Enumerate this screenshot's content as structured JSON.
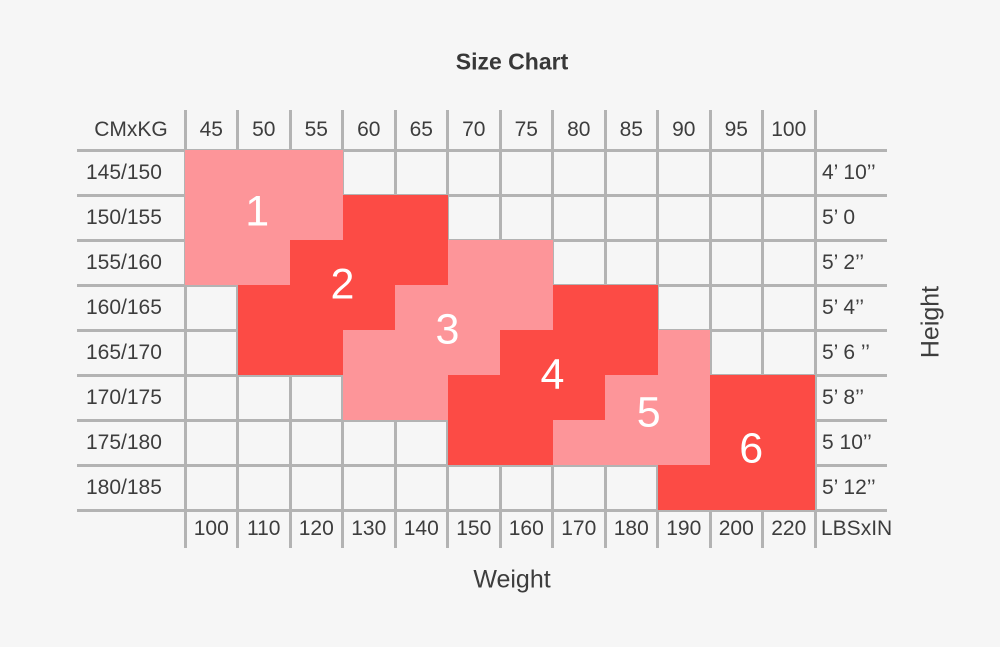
{
  "title": "Size Chart",
  "x_axis_label": "Weight",
  "y_axis_label": "Height",
  "top_left_corner": "CMxKG",
  "bottom_right_corner": "LBSxIN",
  "colors": {
    "pink": "#fd9599",
    "red": "#fc4b45",
    "grid": "#b3b3b3",
    "background": "#f6f6f6",
    "text": "#3d3d3d",
    "zone_label": "#ffffff"
  },
  "chart_data": {
    "type": "heatmap",
    "title": "Size Chart",
    "xlabel": "Weight",
    "ylabel": "Height",
    "x_unit_top": "CMxKG",
    "x_unit_bottom": "LBSxIN",
    "columns_kg": [
      "45",
      "50",
      "55",
      "60",
      "65",
      "70",
      "75",
      "80",
      "85",
      "90",
      "95",
      "100"
    ],
    "columns_lbs": [
      "100",
      "110",
      "120",
      "130",
      "140",
      "150",
      "160",
      "170",
      "180",
      "190",
      "200",
      "220"
    ],
    "rows_cm": [
      "145/150",
      "150/155",
      "155/160",
      "160/165",
      "165/170",
      "170/175",
      "175/180",
      "180/185"
    ],
    "rows_in": [
      "4’ 10’’",
      "5’ 0",
      "5’ 2’’",
      "5’ 4’’",
      "5’ 6 ’’",
      "5’ 8’’",
      "5 10’’",
      "5’ 12’’"
    ],
    "legend_note": "zones 1-6 are size regions; odd zones pink, even zones red",
    "zones": [
      {
        "size": "1",
        "color_key": "pink",
        "segments": [
          {
            "row": 1,
            "from_col": 1,
            "to_col": 3
          },
          {
            "row": 2,
            "from_col": 1,
            "to_col": 3
          },
          {
            "row": 3,
            "from_col": 1,
            "to_col": 2
          }
        ]
      },
      {
        "size": "2",
        "color_key": "red",
        "segments": [
          {
            "row": 2,
            "from_col": 4,
            "to_col": 5
          },
          {
            "row": 3,
            "from_col": 3,
            "to_col": 5
          },
          {
            "row": 4,
            "from_col": 2,
            "to_col": 4
          },
          {
            "row": 5,
            "from_col": 2,
            "to_col": 3
          }
        ]
      },
      {
        "size": "3",
        "color_key": "pink",
        "segments": [
          {
            "row": 3,
            "from_col": 6,
            "to_col": 7
          },
          {
            "row": 4,
            "from_col": 5,
            "to_col": 7
          },
          {
            "row": 5,
            "from_col": 4,
            "to_col": 6
          },
          {
            "row": 6,
            "from_col": 4,
            "to_col": 5
          }
        ]
      },
      {
        "size": "4",
        "color_key": "red",
        "segments": [
          {
            "row": 4,
            "from_col": 8,
            "to_col": 9
          },
          {
            "row": 5,
            "from_col": 7,
            "to_col": 9
          },
          {
            "row": 6,
            "from_col": 6,
            "to_col": 8
          },
          {
            "row": 7,
            "from_col": 6,
            "to_col": 7
          }
        ]
      },
      {
        "size": "5",
        "color_key": "pink",
        "segments": [
          {
            "row": 5,
            "from_col": 10,
            "to_col": 10
          },
          {
            "row": 6,
            "from_col": 9,
            "to_col": 10
          },
          {
            "row": 7,
            "from_col": 8,
            "to_col": 10
          }
        ]
      },
      {
        "size": "6",
        "color_key": "red",
        "segments": [
          {
            "row": 6,
            "from_col": 11,
            "to_col": 12
          },
          {
            "row": 7,
            "from_col": 11,
            "to_col": 12
          },
          {
            "row": 8,
            "from_col": 10,
            "to_col": 12
          }
        ]
      }
    ]
  }
}
